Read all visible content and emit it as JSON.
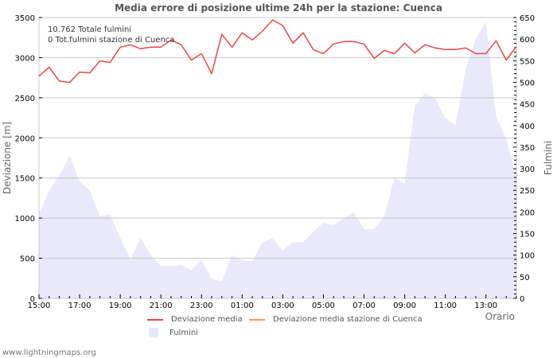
{
  "title": "Media errore di posizione ultime 24h per la stazione: Cuenca",
  "info": {
    "total_strikes": "10.762 Totale fulmini",
    "station_strikes": "0 Tot.fulmini stazione di Cuenca"
  },
  "axes": {
    "left_title": "Deviazione  [m]",
    "right_title": "Fulmini",
    "x_title": "Orario",
    "left_ticks": [
      "0",
      "500",
      "1000",
      "1500",
      "2000",
      "2500",
      "3000",
      "3500"
    ],
    "right_ticks": [
      "0",
      "50",
      "100",
      "150",
      "200",
      "250",
      "300",
      "350",
      "400",
      "450",
      "500",
      "550",
      "600",
      "650"
    ],
    "x_ticks": [
      "15:00",
      "17:00",
      "19:00",
      "21:00",
      "23:00",
      "01:00",
      "03:00",
      "05:00",
      "07:00",
      "09:00",
      "11:00",
      "13:00"
    ]
  },
  "legend": {
    "items": [
      {
        "label": "Deviazione media",
        "color": "#ee4444",
        "type": "line"
      },
      {
        "label": "Deviazione media stazione di Cuenca",
        "color": "#ff9944",
        "type": "line"
      },
      {
        "label": "Fulmini",
        "color": "#e8e8fc",
        "type": "area"
      }
    ]
  },
  "footer": "www.lightningmaps.org",
  "colors": {
    "line": "#ee4444",
    "area": "#e9e9fb",
    "grid": "#c8c8c8"
  },
  "chart_data": {
    "type": "line",
    "title": "Media errore di posizione ultime 24h per la stazione: Cuenca",
    "xlabel": "Orario",
    "ylabel": "Deviazione  [m]",
    "y2label": "Fulmini",
    "ylim": [
      0,
      3500
    ],
    "y2lim": [
      0,
      650
    ],
    "grid": true,
    "legend_position": "bottom",
    "x": [
      "15:00",
      "15:30",
      "16:00",
      "16:30",
      "17:00",
      "17:30",
      "18:00",
      "18:30",
      "19:00",
      "19:30",
      "20:00",
      "20:30",
      "21:00",
      "21:30",
      "22:00",
      "22:30",
      "23:00",
      "23:30",
      "00:00",
      "00:30",
      "01:00",
      "01:30",
      "02:00",
      "02:30",
      "03:00",
      "03:30",
      "04:00",
      "04:30",
      "05:00",
      "05:30",
      "06:00",
      "06:30",
      "07:00",
      "07:30",
      "08:00",
      "08:30",
      "09:00",
      "09:30",
      "10:00",
      "10:30",
      "11:00",
      "11:30",
      "12:00",
      "12:30",
      "13:00",
      "13:30",
      "14:00",
      "14:25"
    ],
    "series": [
      {
        "name": "Deviazione media",
        "axis": "left",
        "type": "line",
        "values": [
          2770,
          2880,
          2710,
          2690,
          2820,
          2810,
          2960,
          2940,
          3130,
          3160,
          3110,
          3130,
          3130,
          3220,
          3160,
          2970,
          3050,
          2800,
          3290,
          3130,
          3310,
          3220,
          3330,
          3470,
          3400,
          3180,
          3310,
          3100,
          3050,
          3170,
          3200,
          3200,
          3170,
          2990,
          3090,
          3050,
          3180,
          3060,
          3160,
          3120,
          3100,
          3100,
          3120,
          3050,
          3050,
          3210,
          2970,
          3140
        ]
      },
      {
        "name": "Deviazione media stazione di Cuenca",
        "axis": "left",
        "type": "line",
        "values": []
      },
      {
        "name": "Fulmini",
        "axis": "right",
        "type": "area",
        "values": [
          195,
          250,
          285,
          330,
          270,
          250,
          190,
          195,
          140,
          90,
          140,
          100,
          75,
          75,
          78,
          65,
          90,
          45,
          40,
          100,
          88,
          85,
          130,
          140,
          110,
          130,
          130,
          155,
          175,
          170,
          185,
          200,
          160,
          160,
          190,
          280,
          265,
          445,
          475,
          462,
          418,
          400,
          530,
          600,
          640,
          420,
          370,
          280
        ]
      }
    ]
  }
}
